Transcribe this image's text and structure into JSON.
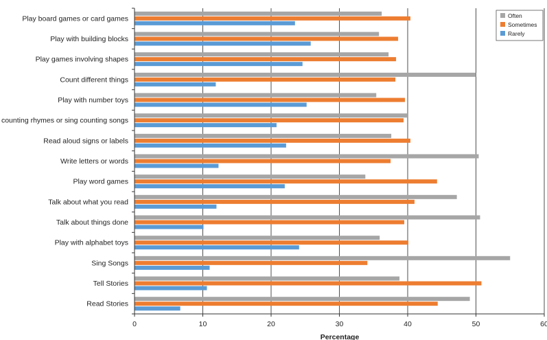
{
  "chart_data": {
    "type": "bar",
    "orientation": "horizontal",
    "title": "",
    "xlabel": "Percentage",
    "ylabel": "",
    "xlim": [
      0,
      60
    ],
    "xticks": [
      "0",
      "10",
      "20",
      "30",
      "40",
      "50",
      "60"
    ],
    "grid": true,
    "legend_position": "top-right",
    "categories": [
      "Play board games or card games",
      "Play with building blocks",
      "Play games involving shapes",
      "Count different things",
      "Play with number toys",
      "Say counting rhymes or sing counting songs",
      "Read aloud signs or labels",
      "Write letters or words",
      "Play word games",
      "Talk about what you read",
      "Talk about things done",
      "Play with alphabet toys",
      "Sing Songs",
      "Tell Stories",
      "Read Stories"
    ],
    "series": [
      {
        "name": "Often",
        "color": "#a6a6a6",
        "values": [
          36.2,
          35.8,
          37.2,
          50.0,
          35.4,
          40.0,
          37.6,
          50.4,
          33.8,
          47.2,
          50.6,
          35.9,
          55.0,
          38.8,
          49.1
        ]
      },
      {
        "name": "Sometimes",
        "color": "#ed7d31",
        "values": [
          40.4,
          38.6,
          38.3,
          38.2,
          39.6,
          39.4,
          40.4,
          37.5,
          44.3,
          41.0,
          39.5,
          40.1,
          34.1,
          50.8,
          44.4
        ]
      },
      {
        "name": "Rarely",
        "color": "#5b9bd5",
        "values": [
          23.5,
          25.8,
          24.6,
          11.9,
          25.2,
          20.8,
          22.2,
          12.3,
          22.0,
          12.0,
          10.1,
          24.1,
          11.0,
          10.6,
          6.7
        ]
      }
    ]
  }
}
